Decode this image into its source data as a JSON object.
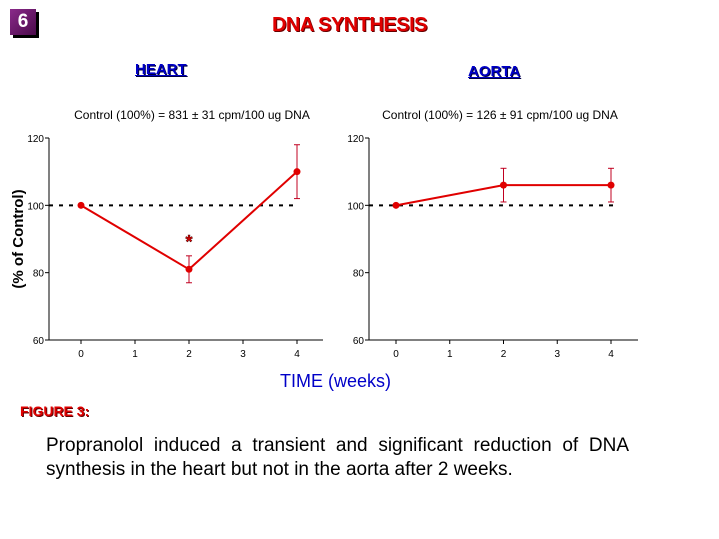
{
  "slide_number": "6",
  "title": "DNA SYNTHESIS",
  "figure_label": "FIGURE 3:",
  "caption": "Propranolol induced a transient and significant reduction of DNA synthesis in the heart but not in the aorta after 2 weeks.",
  "shared_xlabel": "TIME (weeks)",
  "shared_ylabel": "(% of Control)",
  "colors": {
    "series": "#e00000",
    "title": "#e00000",
    "panel_title": "#0000c8",
    "reference_line": "#000000"
  },
  "chart_data": [
    {
      "type": "line",
      "title": "HEART",
      "subtitle": "Control (100%) = 831 ± 31 cpm/100 ug DNA",
      "xlabel": "TIME (weeks)",
      "ylabel": "(% of Control)",
      "xlim": [
        0,
        4
      ],
      "ylim": [
        60,
        120
      ],
      "xticks": [
        "0",
        "1",
        "2",
        "3",
        "4"
      ],
      "yticks": [
        "60",
        "80",
        "100",
        "120"
      ],
      "reference_line": 100,
      "grid": false,
      "x": [
        0,
        2,
        4
      ],
      "values": [
        100,
        81,
        110
      ],
      "errors": [
        0,
        4,
        8
      ],
      "annotations": [
        {
          "text": "*",
          "x": 2,
          "y": 90
        }
      ]
    },
    {
      "type": "line",
      "title": "AORTA",
      "subtitle": "Control (100%) = 126 ± 91 cpm/100 ug DNA",
      "xlabel": "TIME (weeks)",
      "xlim": [
        0,
        4
      ],
      "ylim": [
        60,
        120
      ],
      "xticks": [
        "0",
        "1",
        "2",
        "3",
        "4"
      ],
      "yticks": [
        "60",
        "80",
        "100",
        "120"
      ],
      "reference_line": 100,
      "grid": false,
      "x": [
        0,
        2,
        4
      ],
      "values": [
        100,
        106,
        106
      ],
      "errors": [
        0,
        5,
        5
      ],
      "annotations": []
    }
  ]
}
